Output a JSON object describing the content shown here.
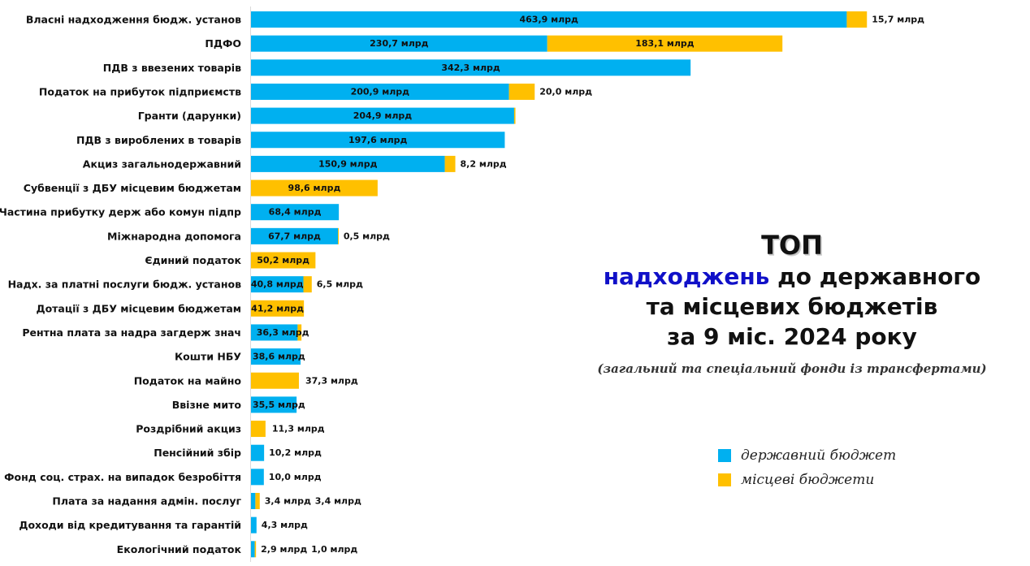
{
  "colors": {
    "state": "#00b0f0",
    "local": "#ffc000"
  },
  "title": {
    "line1": "ТОП",
    "line2_accent": "надходжень",
    "line2_rest": " до державного",
    "line3": "та місцевих бюджетів",
    "line4": "за 9 міс. 2024 року",
    "subtitle": "(загальний та спеціальний фонди із трансфертами)"
  },
  "legend": [
    {
      "name": "державний бюджет",
      "color": "#00b0f0"
    },
    {
      "name": "місцеві бюджети",
      "color": "#ffc000"
    }
  ],
  "chart_data": {
    "type": "bar",
    "orientation": "horizontal",
    "stacked": true,
    "unit": "млрд",
    "xlim": [
      0,
      500
    ],
    "grid": false,
    "legend_position": "bottom-right",
    "categories": [
      "Власні надходження бюдж. установ",
      "ПДФО",
      "ПДВ з ввезених товарів",
      "Податок на прибуток підприємств",
      "Гранти (дарунки)",
      "ПДВ з вироблених в товарів",
      "Акциз загальнодержавний",
      "Субвенції з ДБУ місцевим бюджетам",
      "Частина прибутку держ або комун підпр",
      "Міжнародна допомога",
      "Єдиний податок",
      "Надх. за платні послуги бюдж. установ",
      "Дотації з ДБУ місцевим бюджетам",
      "Рентна плата за надра загдерж знач",
      "Кошти НБУ",
      "Податок на майно",
      "Ввізне мито",
      "Роздрібний акциз",
      "Пенсійний збір",
      "Фонд соц. страх. на випадок безробіття",
      "Плата за надання адмін. послуг",
      "Доходи від кредитування та гарантій",
      "Екологічний податок"
    ],
    "series": [
      {
        "name": "державний бюджет",
        "values": [
          463.9,
          230.7,
          342.3,
          200.9,
          204.9,
          197.6,
          150.9,
          0,
          68.4,
          67.7,
          0,
          40.8,
          0,
          36.3,
          38.6,
          0,
          35.5,
          0,
          10.2,
          10.0,
          3.4,
          4.3,
          2.9
        ],
        "labels": [
          "463,9 млрд",
          "230,7 млрд",
          "342,3 млрд",
          "200,9 млрд",
          "204,9 млрд",
          "197,6 млрд",
          "150,9 млрд",
          "",
          "68,4 млрд",
          "67,7 млрд",
          "",
          "40,8 млрд",
          "",
          "36,3 млрд",
          "38,6 млрд",
          "",
          "35,5 млрд",
          "",
          "10,2 млрд",
          "10,0 млрд",
          "3,4 млрд",
          "4,3 млрд",
          "2,9 млрд"
        ]
      },
      {
        "name": "місцеві бюджети",
        "values": [
          15.7,
          183.1,
          0,
          20.0,
          1.0,
          0,
          8.2,
          98.6,
          0,
          0.5,
          50.2,
          6.5,
          41.2,
          3.0,
          0,
          37.3,
          0,
          11.3,
          0,
          0,
          3.4,
          0,
          1.0
        ],
        "labels": [
          "15,7 млрд",
          "183,1 млрд",
          "",
          "20,0 млрд",
          "",
          "",
          "8,2 млрд",
          "98,6 млрд",
          "",
          "0,5 млрд",
          "50,2 млрд",
          "6,5 млрд",
          "41,2 млрд",
          "",
          "",
          "37,3 млрд",
          "",
          "11,3 млрд",
          "",
          "",
          "3,4 млрд",
          "",
          "1,0 млрд"
        ]
      }
    ]
  }
}
